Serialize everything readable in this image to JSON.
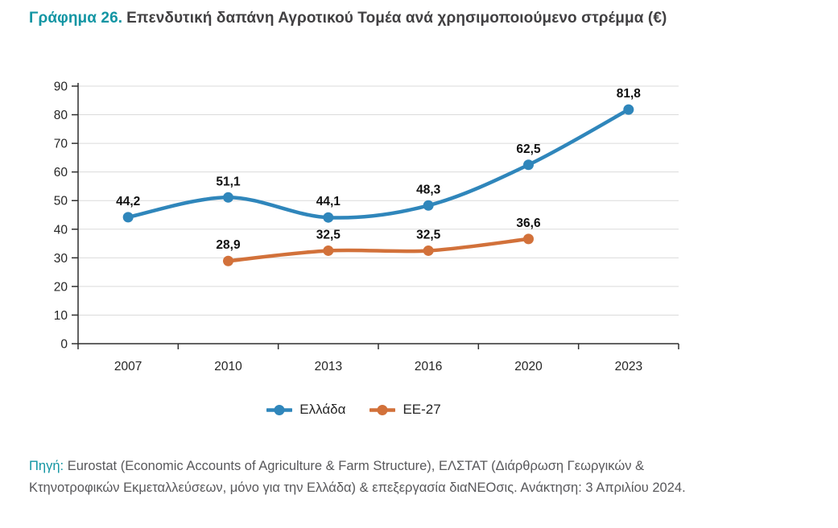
{
  "title": {
    "prefix": "Γράφημα 26.",
    "text": "Επενδυτική δαπάνη Αγροτικού Τομέα ανά χρησιμοποιούμενο στρέμμα (€)"
  },
  "chart_data": {
    "type": "line",
    "title": "Επενδυτική δαπάνη Αγροτικού Τομέα ανά χρησιμοποιούμενο στρέμμα (€)",
    "categories": [
      "2007",
      "2010",
      "2013",
      "2016",
      "2020",
      "2023"
    ],
    "series": [
      {
        "name": "Ελλάδα",
        "color": "#2F86BB",
        "values": [
          44.2,
          51.1,
          44.1,
          48.3,
          62.5,
          81.8
        ]
      },
      {
        "name": "ΕΕ-27",
        "color": "#D2713A",
        "values": [
          null,
          28.9,
          32.5,
          32.5,
          36.6,
          null
        ]
      }
    ],
    "xlabel": "",
    "ylabel": "",
    "ylim": [
      0,
      90
    ],
    "yticks": [
      0,
      10,
      20,
      30,
      40,
      50,
      60,
      70,
      80,
      90
    ],
    "grid": true,
    "smoothed_lines": true,
    "data_labels_decimal_separator": "comma",
    "legend_position": "bottom"
  },
  "source": {
    "prefix": "Πηγή:",
    "line1": " Eurostat (Economic Accounts of Agriculture & Farm Structure), ΕΛΣΤΑΤ (Διάρθρωση Γεωργικών &",
    "line2": "Κτηνοτροφικών Εκμεταλλεύσεων, μόνο για την Ελλάδα) & επεξεργασία διαΝΕΟσις. Ανάκτηση: 3 Απριλίου 2024."
  },
  "colors": {
    "accent_teal": "#1295A3",
    "title_dark": "#414042",
    "grid": "#DBDBDB",
    "axis_line": "#2F2F2F",
    "axis_text": "#262626",
    "data_label": "#101010",
    "source_gray": "#58585B"
  }
}
